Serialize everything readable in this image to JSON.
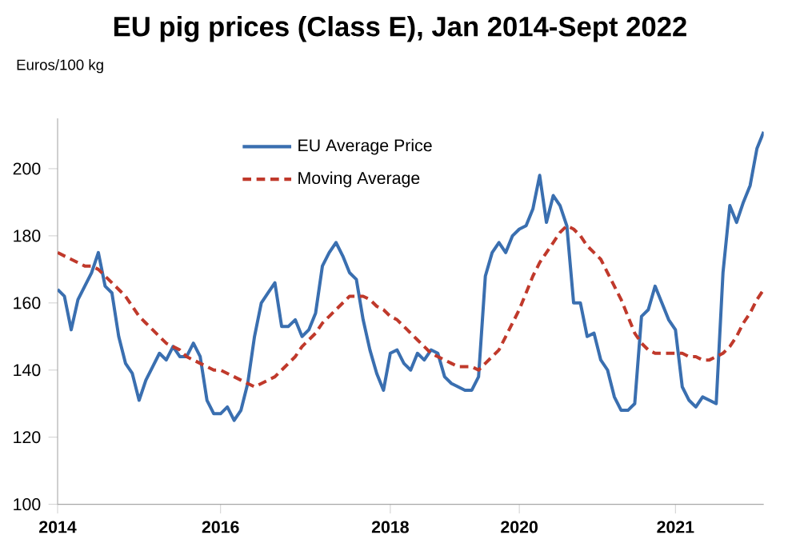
{
  "chart_data": {
    "type": "line",
    "title": "EU pig prices (Class E), Jan 2014-Sept 2022",
    "ylabel": "Euros/100 kg",
    "categories": [
      "2014",
      null,
      null,
      null,
      null,
      null,
      null,
      null,
      null,
      null,
      null,
      null,
      null,
      null,
      null,
      null,
      null,
      null,
      null,
      null,
      null,
      null,
      null,
      null,
      "2016",
      null,
      null,
      null,
      null,
      null,
      null,
      null,
      null,
      null,
      null,
      null,
      null,
      null,
      null,
      null,
      null,
      null,
      null,
      null,
      null,
      null,
      null,
      null,
      null,
      "2018",
      null,
      null,
      null,
      null,
      null,
      null,
      null,
      null,
      null,
      null,
      null,
      null,
      null,
      null,
      null,
      null,
      null,
      null,
      "2020",
      null,
      null,
      null,
      null,
      null,
      null,
      null,
      null,
      null,
      null,
      null,
      null,
      null,
      null,
      null,
      null,
      null,
      null,
      null,
      null,
      null,
      null,
      "2021",
      null,
      null,
      null,
      null,
      null,
      null,
      null,
      null,
      null,
      null,
      null,
      null,
      null
    ],
    "ylim": [
      100,
      215
    ],
    "yticks": [
      100,
      120,
      140,
      160,
      180,
      200
    ],
    "grid": false,
    "legend": "top left",
    "marker": "none",
    "series": [
      {
        "name": "EU Average Price",
        "color": "#3a6fb0",
        "line_style": "solid",
        "values": [
          164,
          162,
          152,
          161,
          165,
          169,
          175,
          165,
          163,
          150,
          142,
          139,
          131,
          137,
          141,
          145,
          143,
          147,
          144,
          144,
          148,
          144,
          131,
          127,
          127,
          129,
          125,
          128,
          136,
          150,
          160,
          163,
          166,
          153,
          153,
          155,
          150,
          152,
          157,
          171,
          175,
          178,
          174,
          169,
          167,
          155,
          146,
          139,
          134,
          145,
          146,
          142,
          140,
          145,
          143,
          146,
          145,
          138,
          136,
          135,
          134,
          134,
          138,
          168,
          175,
          178,
          175,
          180,
          182,
          183,
          188,
          198,
          184,
          192,
          189,
          183,
          160,
          160,
          150,
          151,
          143,
          140,
          132,
          128,
          128,
          130,
          156,
          158,
          165,
          160,
          155,
          152,
          135,
          131,
          129,
          132,
          131,
          130,
          169,
          189,
          184,
          190,
          195,
          206,
          211
        ]
      },
      {
        "name": "Moving Average",
        "color": "#c0392b",
        "line_style": "dashed",
        "values": [
          175,
          174,
          173,
          172,
          171,
          171,
          170,
          168,
          166,
          164,
          162,
          159,
          156,
          154,
          152,
          150,
          148,
          147,
          146,
          144,
          143,
          142,
          141,
          140,
          140,
          139,
          138,
          137,
          136,
          135,
          136,
          137,
          138,
          140,
          142,
          144,
          147,
          149,
          151,
          154,
          156,
          158,
          160,
          162,
          162,
          162,
          161,
          159,
          158,
          156,
          155,
          153,
          151,
          149,
          147,
          145,
          144,
          143,
          142,
          141,
          141,
          141,
          140,
          142,
          144,
          146,
          150,
          154,
          158,
          163,
          168,
          172,
          175,
          178,
          181,
          183,
          182,
          180,
          177,
          175,
          173,
          169,
          165,
          161,
          156,
          151,
          148,
          146,
          145,
          145,
          145,
          145,
          145,
          144,
          144,
          143,
          143,
          144,
          145,
          147,
          150,
          154,
          157,
          161,
          164
        ]
      }
    ]
  }
}
